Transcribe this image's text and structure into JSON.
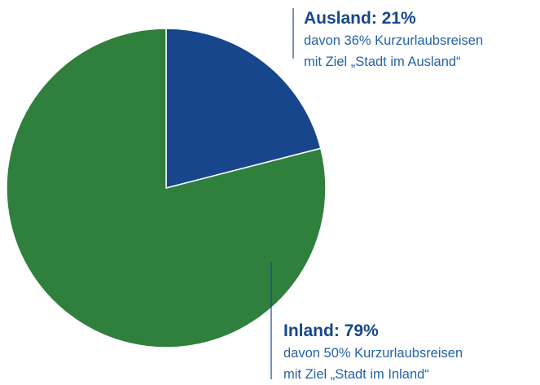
{
  "chart_data": {
    "type": "pie",
    "values": [
      21,
      79
    ],
    "value_labels": [
      "Ausland: 21%",
      "Inland: 79%"
    ],
    "colors": [
      "#17468c",
      "#2f7f3d"
    ],
    "annotations": [
      [
        "davon 36% Kurzurlaubsreisen",
        "mit Ziel „Stadt im Ausland“"
      ],
      [
        "davon 50% Kurzurlaubsreisen",
        "mit Ziel „Stadt im Inland“"
      ]
    ]
  }
}
